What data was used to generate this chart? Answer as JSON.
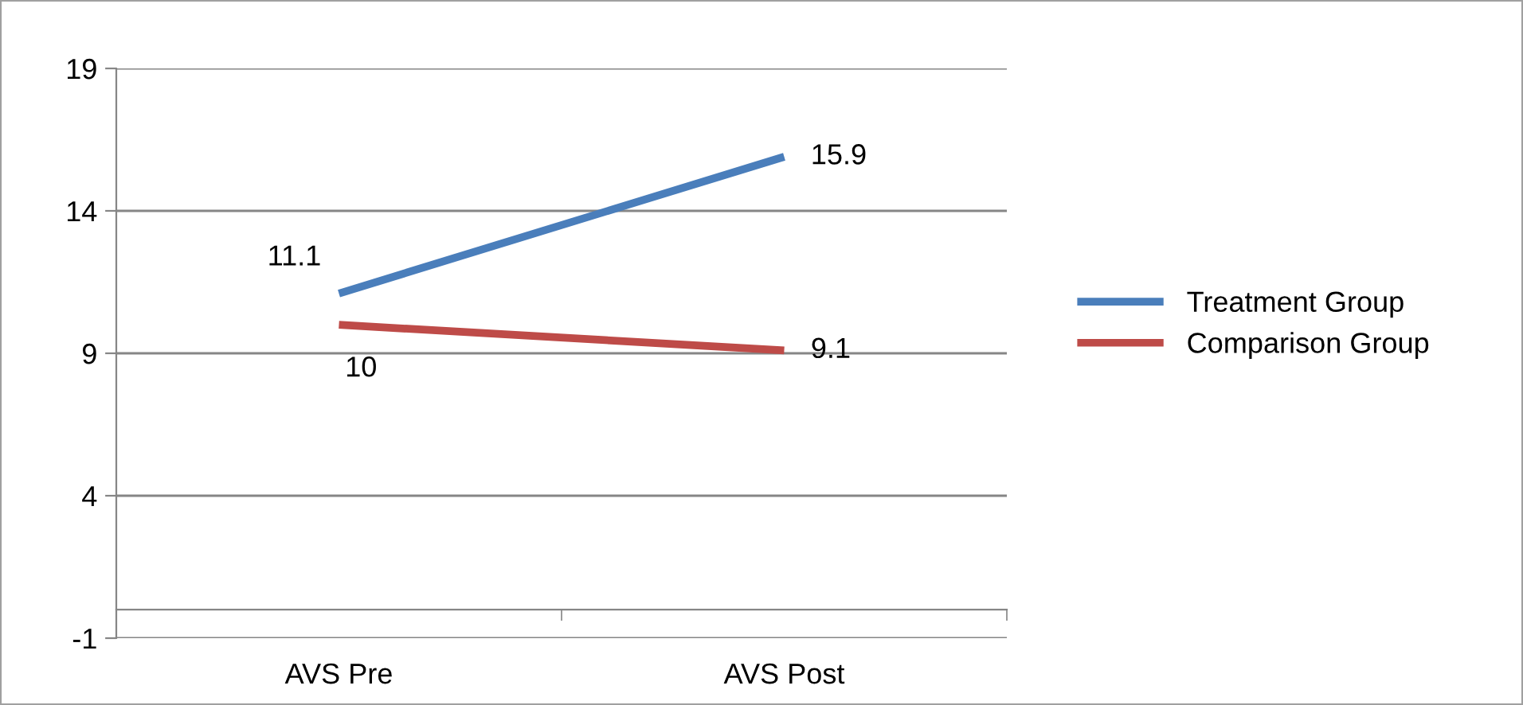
{
  "chart_data": {
    "type": "line",
    "categories": [
      "AVS Pre",
      "AVS Post"
    ],
    "series": [
      {
        "name": "Treatment Group",
        "color": "#4a7ebb",
        "values": [
          11.1,
          15.9
        ]
      },
      {
        "name": "Comparison Group",
        "color": "#be4b48",
        "values": [
          10,
          9.1
        ]
      }
    ],
    "ylim": [
      -1,
      19
    ],
    "yticks": [
      -1,
      4,
      9,
      14,
      19
    ],
    "grid": "y",
    "legend": "right",
    "data_labels": true,
    "marker": "none",
    "line_style": "solid"
  }
}
